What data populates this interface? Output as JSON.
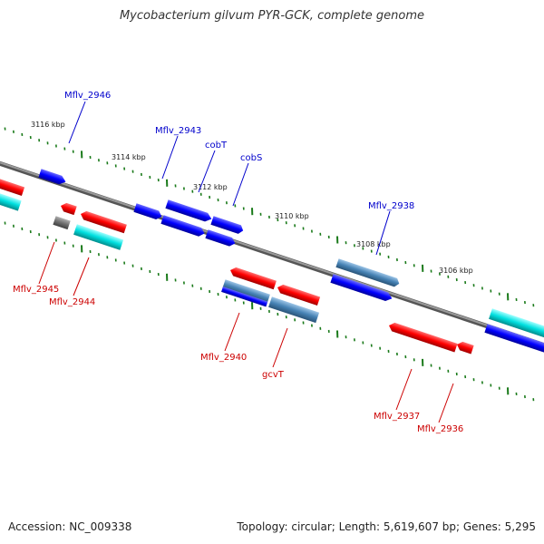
{
  "title": "Mycobacterium gilvum PYR-GCK, complete genome",
  "footer": {
    "accession": "Accession: NC_009338",
    "summary": "Topology: circular; Length: 5,619,607 bp; Genes: 5,295"
  },
  "colors": {
    "forward_gene": "#0000ff",
    "reverse_gene": "#ff0000",
    "rna_gene": "#00cccc",
    "pseudo_gene": "#707070",
    "steelblue_gene": "#4682b4",
    "backbone": "#808080",
    "tick_mark": "#1a7a1a",
    "forward_label": "#0000cc",
    "reverse_label": "#cc0000"
  },
  "scale": {
    "ticks": [
      "3116 kbp",
      "3114 kbp",
      "3112 kbp",
      "3110 kbp",
      "3108 kbp",
      "3106 kbp"
    ]
  },
  "labels": {
    "forward": [
      "Mflv_2946",
      "Mflv_2943",
      "cobT",
      "cobS",
      "Mflv_2938"
    ],
    "reverse": [
      "Mflv_2945",
      "Mflv_2944",
      "Mflv_2940",
      "gcvT",
      "Mflv_2937",
      "Mflv_2936"
    ]
  }
}
